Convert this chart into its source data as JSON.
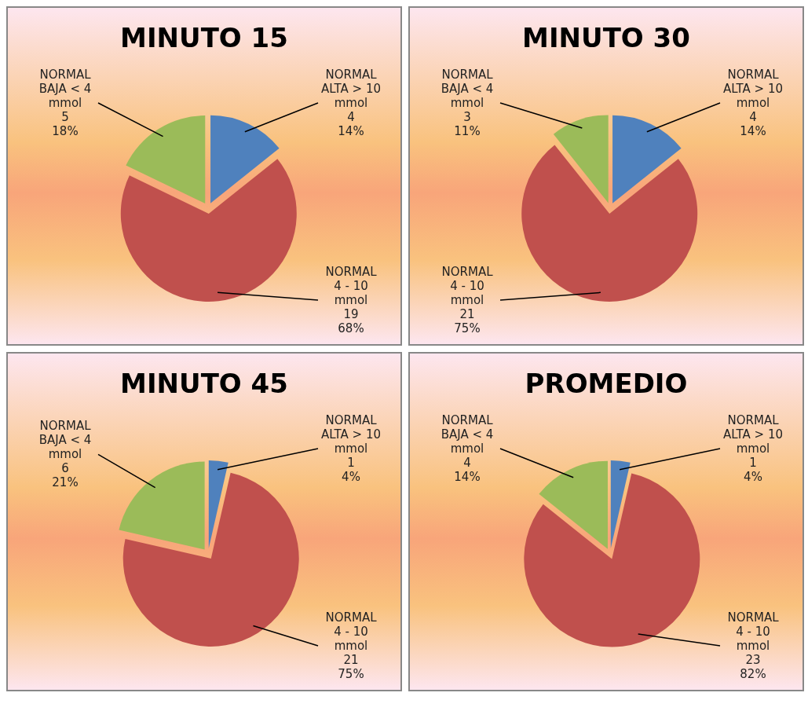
{
  "chart_data": [
    {
      "type": "pie",
      "title": "MINUTO 15",
      "categories": [
        "NORMAL ALTA > 10 mmol",
        "NORMAL 4 - 10 mmol",
        "NORMAL BAJA < 4 mmol"
      ],
      "values": [
        4,
        19,
        5
      ],
      "colors": [
        "#4f81bd",
        "#c0504d",
        "#9bbb59"
      ],
      "value_labels": [
        "4\n14%",
        "19\n68%",
        "5\n18%"
      ],
      "legend": false
    },
    {
      "type": "pie",
      "title": "MINUTO 30",
      "categories": [
        "NORMAL ALTA > 10 mmol",
        "NORMAL 4 - 10 mmol",
        "NORMAL BAJA < 4 mmol"
      ],
      "values": [
        4,
        21,
        3
      ],
      "colors": [
        "#4f81bd",
        "#c0504d",
        "#9bbb59"
      ],
      "value_labels": [
        "4\n14%",
        "21\n75%",
        "3\n11%"
      ],
      "legend": false
    },
    {
      "type": "pie",
      "title": "MINUTO 45",
      "categories": [
        "NORMAL ALTA > 10 mmol",
        "NORMAL 4 - 10 mmol",
        "NORMAL BAJA < 4 mmol"
      ],
      "values": [
        1,
        21,
        6
      ],
      "colors": [
        "#4f81bd",
        "#c0504d",
        "#9bbb59"
      ],
      "value_labels": [
        "1\n4%",
        "21\n75%",
        "6\n21%"
      ],
      "legend": false
    },
    {
      "type": "pie",
      "title": "PROMEDIO",
      "categories": [
        "NORMAL ALTA > 10 mmol",
        "NORMAL 4 - 10 mmol",
        "NORMAL BAJA < 4 mmol"
      ],
      "values": [
        1,
        23,
        4
      ],
      "colors": [
        "#4f81bd",
        "#c0504d",
        "#9bbb59"
      ],
      "value_labels": [
        "1\n4%",
        "23\n82%",
        "4\n14%"
      ],
      "legend": false
    }
  ]
}
